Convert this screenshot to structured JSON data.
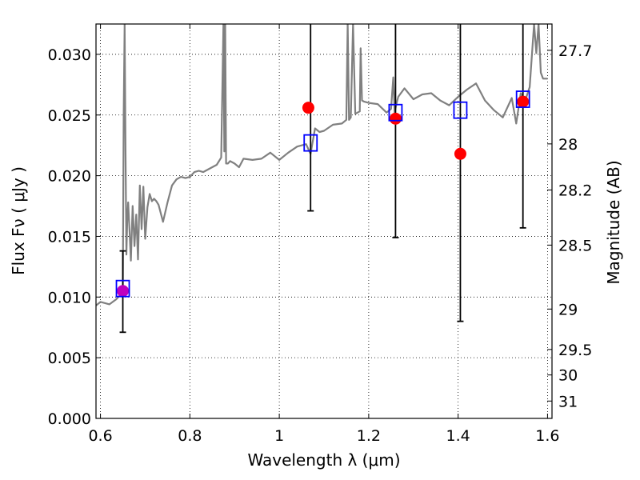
{
  "chart_data": {
    "type": "line",
    "xlabel": "Wavelength  λ (μm)",
    "ylabel": "Flux  Fν  ( μJy )",
    "ylabel_right": "Magnitude (AB)",
    "xlim": [
      0.59,
      1.61
    ],
    "ylim": [
      0.0,
      0.0325
    ],
    "grid": true,
    "xticks": [
      0.6,
      0.8,
      1.0,
      1.2,
      1.4,
      1.6
    ],
    "xtick_labels": [
      "0.6",
      "0.8",
      "1",
      "1.2",
      "1.4",
      "1.6"
    ],
    "yticks": [
      0.0,
      0.005,
      0.01,
      0.015,
      0.02,
      0.025,
      0.03
    ],
    "ytick_labels": [
      "0.000",
      "0.005",
      "0.010",
      "0.015",
      "0.020",
      "0.025",
      "0.030"
    ],
    "right_ticks": [
      {
        "label": "27.7",
        "flux": 0.03033
      },
      {
        "label": "28",
        "flux": 0.02262
      },
      {
        "label": "28.2",
        "flux": 0.01882
      },
      {
        "label": "28.5",
        "flux": 0.01428
      },
      {
        "label": "29",
        "flux": 0.00901
      },
      {
        "label": "29.5",
        "flux": 0.00568
      },
      {
        "label": "30",
        "flux": 0.00358
      },
      {
        "label": "31",
        "flux": 0.00143
      }
    ],
    "series": [
      {
        "name": "SED model",
        "kind": "line",
        "color": "#808080",
        "x": [
          0.59,
          0.6,
          0.62,
          0.635,
          0.645,
          0.65,
          0.652,
          0.654,
          0.656,
          0.658,
          0.66,
          0.662,
          0.665,
          0.668,
          0.672,
          0.676,
          0.68,
          0.684,
          0.688,
          0.692,
          0.696,
          0.7,
          0.705,
          0.71,
          0.715,
          0.72,
          0.725,
          0.73,
          0.74,
          0.75,
          0.76,
          0.77,
          0.78,
          0.79,
          0.8,
          0.81,
          0.82,
          0.83,
          0.84,
          0.85,
          0.86,
          0.87,
          0.875,
          0.877,
          0.879,
          0.881,
          0.885,
          0.89,
          0.9,
          0.91,
          0.92,
          0.94,
          0.96,
          0.98,
          1.0,
          1.02,
          1.04,
          1.06,
          1.07,
          1.08,
          1.09,
          1.1,
          1.12,
          1.14,
          1.15,
          1.153,
          1.156,
          1.16,
          1.165,
          1.17,
          1.18,
          1.182,
          1.185,
          1.19,
          1.2,
          1.22,
          1.24,
          1.25,
          1.255,
          1.258,
          1.262,
          1.266,
          1.28,
          1.3,
          1.32,
          1.34,
          1.36,
          1.38,
          1.4,
          1.42,
          1.44,
          1.46,
          1.48,
          1.5,
          1.52,
          1.53,
          1.54,
          1.55,
          1.56,
          1.57,
          1.575,
          1.58,
          1.585,
          1.59,
          1.6
        ],
        "y": [
          0.0093,
          0.0096,
          0.0094,
          0.0098,
          0.0102,
          0.0104,
          0.025,
          0.0325,
          0.022,
          0.0135,
          0.0165,
          0.0178,
          0.0155,
          0.013,
          0.0175,
          0.0142,
          0.0168,
          0.0131,
          0.0192,
          0.0156,
          0.0191,
          0.0148,
          0.0174,
          0.0185,
          0.0179,
          0.0181,
          0.0179,
          0.0176,
          0.0162,
          0.0178,
          0.0192,
          0.0197,
          0.0199,
          0.0198,
          0.0199,
          0.0203,
          0.0204,
          0.0203,
          0.0205,
          0.0207,
          0.0209,
          0.0215,
          0.0325,
          0.022,
          0.0325,
          0.021,
          0.021,
          0.0212,
          0.021,
          0.0207,
          0.0214,
          0.0213,
          0.0214,
          0.0219,
          0.0213,
          0.0219,
          0.0224,
          0.0226,
          0.0218,
          0.0239,
          0.0236,
          0.0237,
          0.0242,
          0.0243,
          0.0246,
          0.0325,
          0.0246,
          0.0248,
          0.0325,
          0.0251,
          0.0253,
          0.0305,
          0.0262,
          0.0261,
          0.026,
          0.0259,
          0.0252,
          0.0255,
          0.0281,
          0.0252,
          0.0259,
          0.0265,
          0.0272,
          0.0263,
          0.0267,
          0.0268,
          0.0262,
          0.0258,
          0.0265,
          0.0271,
          0.0276,
          0.0262,
          0.0254,
          0.0248,
          0.0264,
          0.0243,
          0.0268,
          0.0262,
          0.0273,
          0.0325,
          0.0301,
          0.0325,
          0.0285,
          0.028,
          0.028
        ]
      },
      {
        "name": "Observed photometry",
        "kind": "points",
        "color": "#ff0000",
        "x": [
          1.065,
          1.26,
          1.405,
          1.545
        ],
        "y": [
          0.0256,
          0.0247,
          0.0218,
          0.0261
        ]
      },
      {
        "name": "Observed (magenta)",
        "kind": "points",
        "color": "#bf00bf",
        "x": [
          0.65
        ],
        "y": [
          0.0105
        ]
      },
      {
        "name": "Model photometry",
        "kind": "squares",
        "color": "#0000ff",
        "x": [
          0.65,
          1.07,
          1.26,
          1.405,
          1.545
        ],
        "y": [
          0.0107,
          0.0227,
          0.0252,
          0.0254,
          0.0263
        ]
      },
      {
        "name": "Error bars",
        "kind": "errorbars",
        "color": "#000000",
        "x": [
          0.65,
          1.07,
          1.26,
          1.405,
          1.545
        ],
        "ylow": [
          0.0071,
          0.0171,
          0.0149,
          0.008,
          0.0157
        ],
        "yhigh": [
          0.0138,
          0.0325,
          0.0325,
          0.0325,
          0.0325
        ]
      }
    ]
  }
}
